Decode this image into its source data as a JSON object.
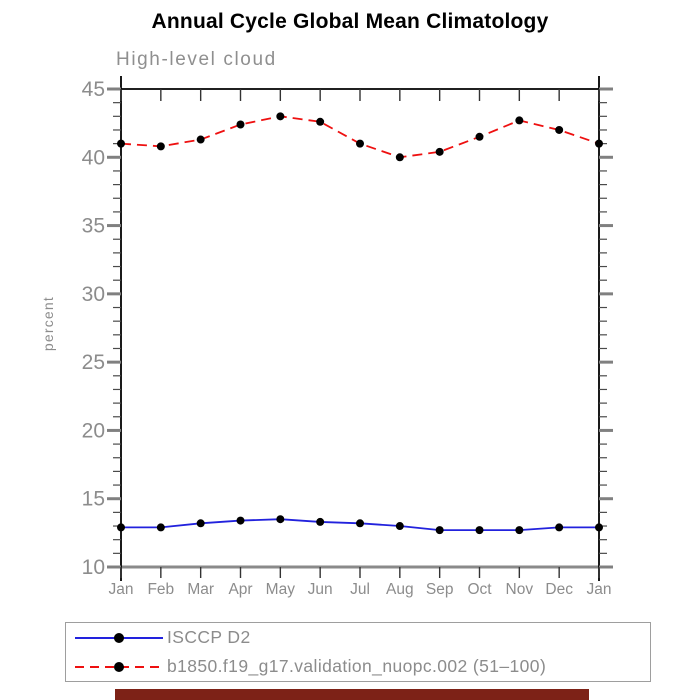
{
  "header": {
    "title": "Annual Cycle Global Mean Climatology"
  },
  "chart_data": {
    "type": "line",
    "title": "Annual Cycle Global Mean Climatology",
    "subtitle": "High-level cloud",
    "xlabel": "",
    "ylabel": "percent",
    "categories": [
      "Jan",
      "Feb",
      "Mar",
      "Apr",
      "May",
      "Jun",
      "Jul",
      "Aug",
      "Sep",
      "Oct",
      "Nov",
      "Dec",
      "Jan"
    ],
    "ylim": [
      10,
      45
    ],
    "y_major_ticks": [
      10,
      15,
      20,
      25,
      30,
      35,
      40,
      45
    ],
    "y_minor_step": 1,
    "grid": false,
    "legend_position": "bottom-left",
    "marker": {
      "shape": "circle",
      "color": "#000000"
    },
    "series": [
      {
        "name": "ISCCP D2",
        "style": "solid",
        "color": "#2222dd",
        "values": [
          12.9,
          12.9,
          13.2,
          13.4,
          13.5,
          13.3,
          13.2,
          13.0,
          12.7,
          12.7,
          12.7,
          12.9,
          12.9
        ]
      },
      {
        "name": "b1850.f19_g17.validation_nuopc.002 (51–100)",
        "style": "dashed",
        "color": "#ee1010",
        "values": [
          41.0,
          40.8,
          41.3,
          42.4,
          43.0,
          42.6,
          41.0,
          40.0,
          40.4,
          41.5,
          42.7,
          42.0,
          41.0
        ]
      }
    ],
    "axis_color": "#000000",
    "tick_color": "#4a4a4a",
    "major_tick_color": "#808080",
    "text_color": "#8c8c8c"
  },
  "bottom_bar": {
    "color": "#7d2217"
  }
}
